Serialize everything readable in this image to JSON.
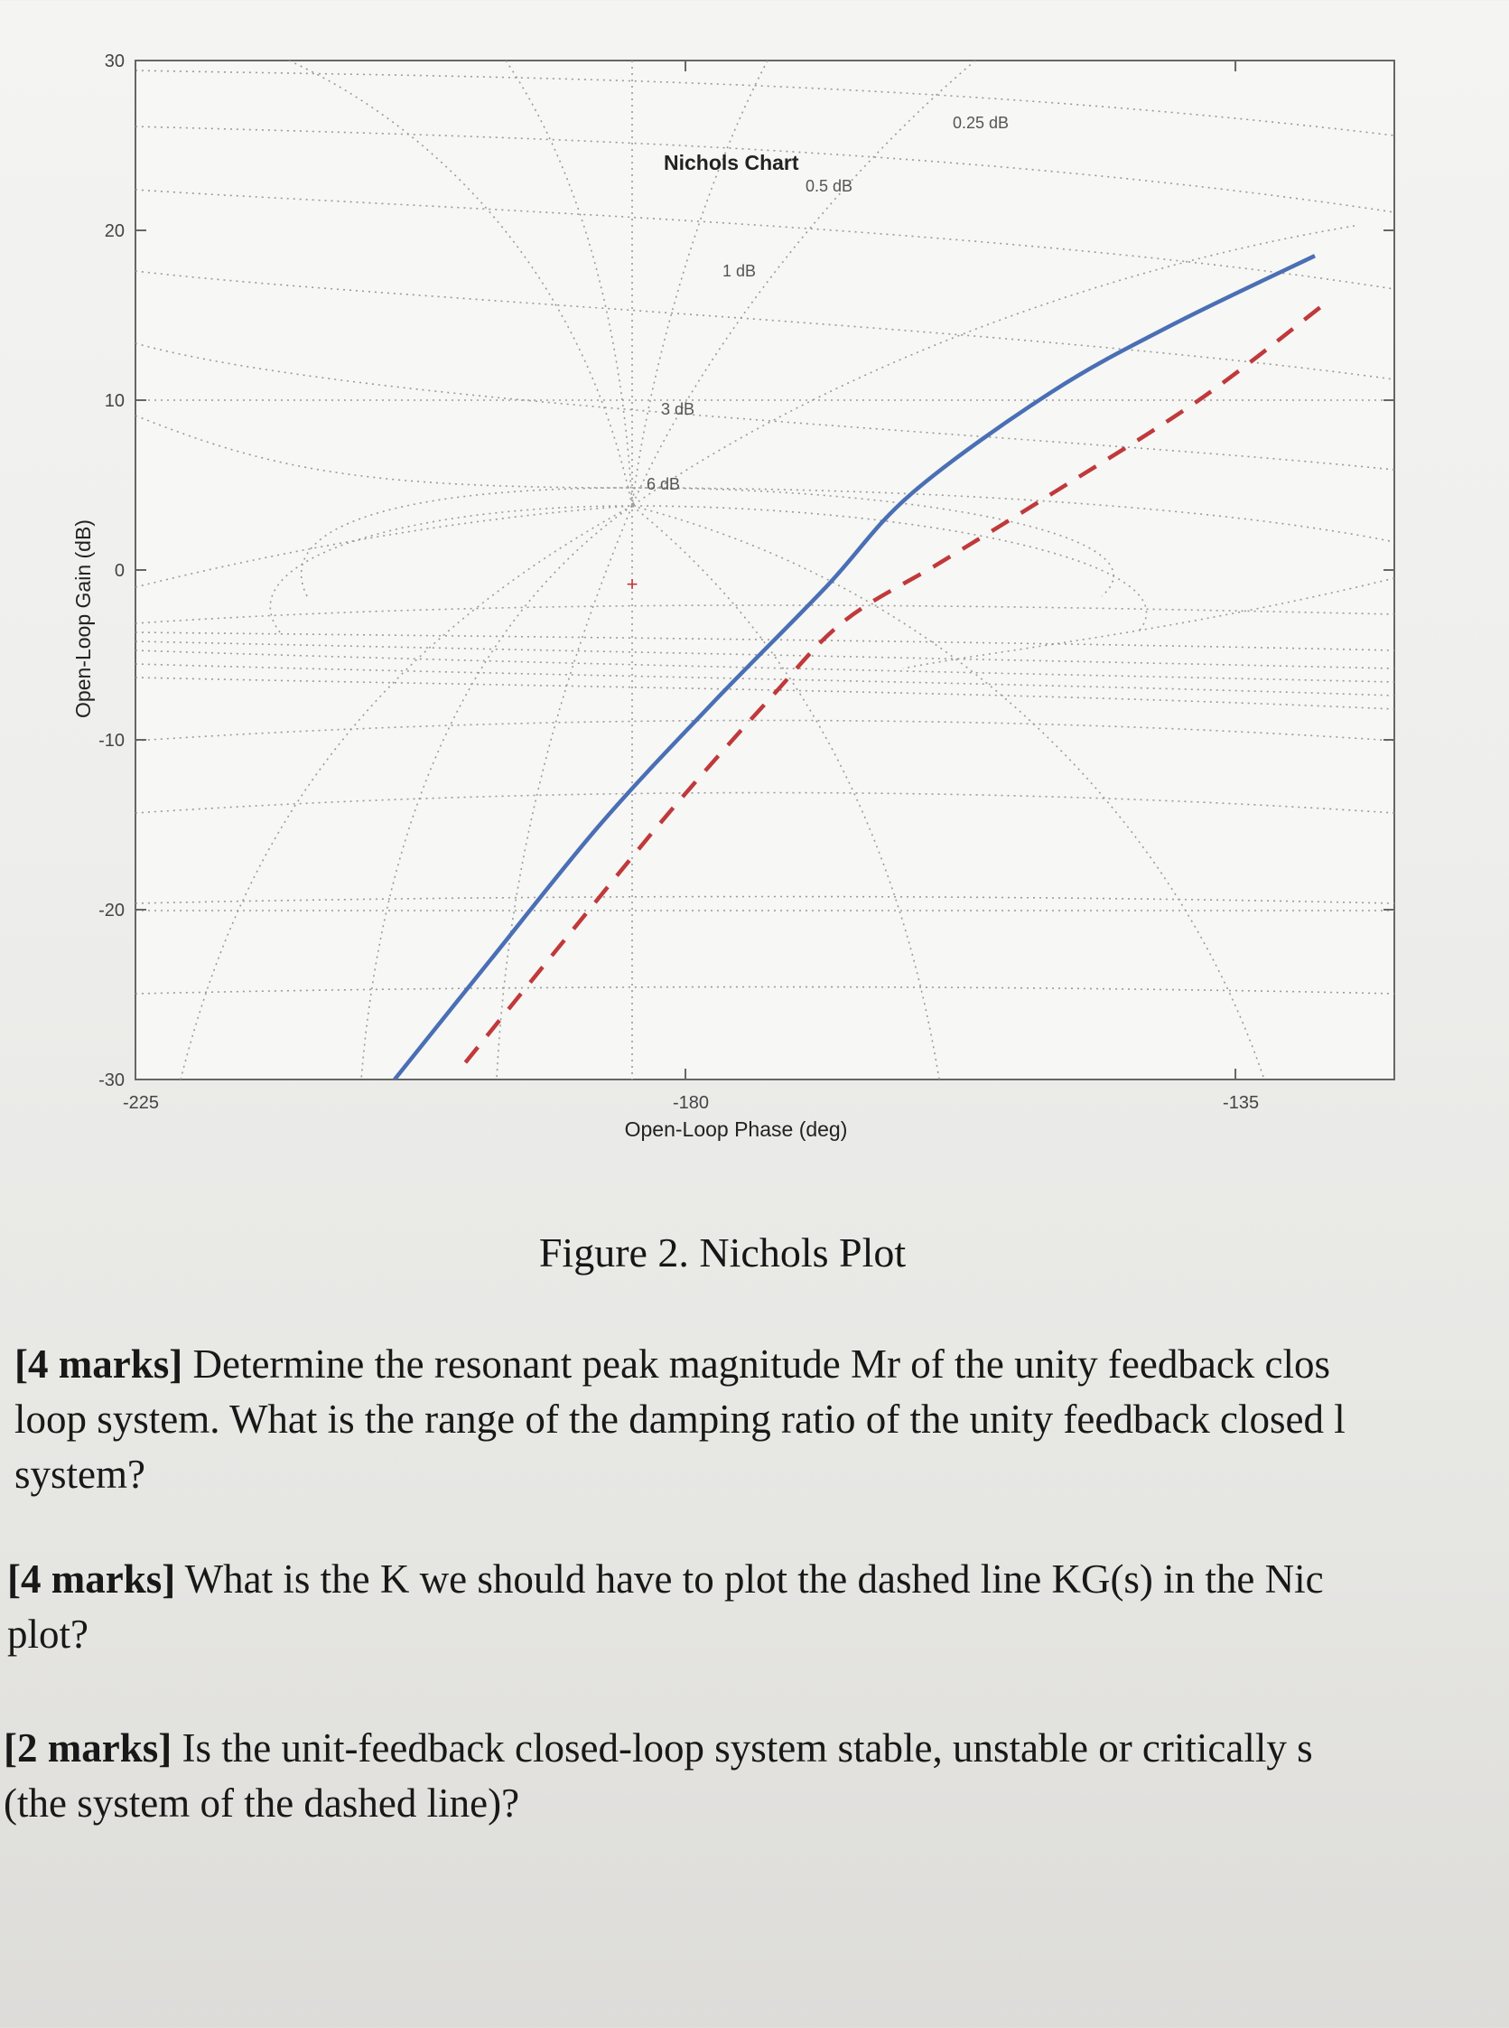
{
  "chart_data": {
    "type": "line",
    "title": "Nichols Chart",
    "xlabel": "Open-Loop Phase (deg)",
    "ylabel": "Open-Loop Gain (dB)",
    "xlim": [
      -225,
      -122
    ],
    "ylim": [
      -30,
      30
    ],
    "xticks": [
      "-225",
      "-180",
      "-135"
    ],
    "yticks": [
      "30",
      "20",
      "10",
      "0",
      "-10",
      "-20",
      "-30"
    ],
    "grid": true,
    "grid_labels": [
      "0.25 dB",
      "0.5 dB",
      "1 dB",
      "3 dB",
      "6 dB"
    ],
    "series": [
      {
        "style": "solid",
        "color": "#4a6fb5",
        "x": [
          -203.8,
          -196.0,
          -187.0,
          -178.0,
          -168.5,
          -161.5,
          -150.0,
          -140.0,
          -128.5
        ],
        "y": [
          -30.0,
          -23.0,
          -15.0,
          -8.0,
          -1.0,
          4.5,
          10.5,
          14.5,
          18.5
        ]
      },
      {
        "style": "dashed",
        "color": "#c0393b",
        "x": [
          -198.0,
          -189.0,
          -181.0,
          -173.0,
          -167.0,
          -159.0,
          -150.0,
          -138.0,
          -128.0
        ],
        "y": [
          -29.0,
          -21.0,
          -14.0,
          -7.5,
          -3.0,
          0.5,
          4.5,
          10.0,
          15.5
        ]
      }
    ]
  },
  "figure_caption": "Figure 2. Nichols Plot",
  "questions": [
    {
      "marks": "[4 marks]",
      "line1": " Determine the resonant peak magnitude Mr of the unity feedback clos",
      "line2": "loop system. What is the range of the damping ratio of the unity feedback closed l",
      "line3": "system?"
    },
    {
      "marks": "[4 marks]",
      "line1": " What is the K we should have to plot the dashed line KG(s) in the Nic",
      "line2": "plot?"
    },
    {
      "marks": "[2 marks]",
      "line1": " Is the unit-feedback closed-loop system stable, unstable or critically s",
      "line2": "(the system of the dashed line)?"
    }
  ]
}
